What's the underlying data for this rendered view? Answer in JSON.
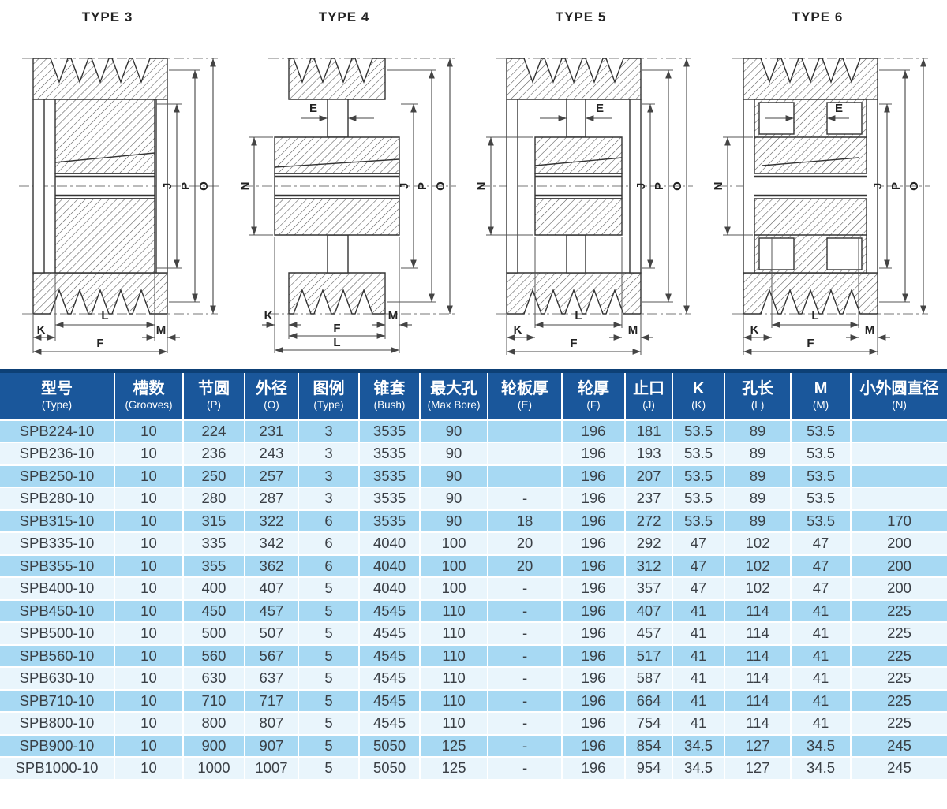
{
  "colors": {
    "header_bg": "#1a579b",
    "header_top": "#0d4076",
    "row_odd": "#a7d9f3",
    "row_even": "#e9f5fc",
    "text_dark": "#3a3f45",
    "line": "#333333"
  },
  "diagrams": [
    {
      "title": "TYPE 3",
      "labels": {
        "J": "J",
        "P": "P",
        "O": "O",
        "K": "K",
        "L": "L",
        "M": "M",
        "F": "F"
      }
    },
    {
      "title": "TYPE 4",
      "labels": {
        "E": "E",
        "N": "N",
        "J": "J",
        "P": "P",
        "O": "O",
        "K": "K",
        "L": "L",
        "M": "M",
        "F": "F"
      }
    },
    {
      "title": "TYPE 5",
      "labels": {
        "E": "E",
        "N": "N",
        "J": "J",
        "P": "P",
        "O": "O",
        "K": "K",
        "L": "L",
        "M": "M",
        "F": "F"
      }
    },
    {
      "title": "TYPE 6",
      "labels": {
        "E": "E",
        "N": "N",
        "J": "J",
        "P": "P",
        "O": "O",
        "K": "K",
        "L": "L",
        "M": "M",
        "F": "F"
      }
    }
  ],
  "table": {
    "columns": [
      {
        "zh": "型号",
        "en": "(Type)"
      },
      {
        "zh": "槽数",
        "en": "(Grooves)"
      },
      {
        "zh": "节圆",
        "en": "(P)"
      },
      {
        "zh": "外径",
        "en": "(O)"
      },
      {
        "zh": "图例",
        "en": "(Type)"
      },
      {
        "zh": "锥套",
        "en": "(Bush)"
      },
      {
        "zh": "最大孔",
        "en": "(Max Bore)"
      },
      {
        "zh": "轮板厚",
        "en": "(E)"
      },
      {
        "zh": "轮厚",
        "en": "(F)"
      },
      {
        "zh": "止口",
        "en": "(J)"
      },
      {
        "zh": "K",
        "en": "(K)"
      },
      {
        "zh": "孔长",
        "en": "(L)"
      },
      {
        "zh": "M",
        "en": "(M)"
      },
      {
        "zh": "小外圆直径",
        "en": "(N)"
      }
    ],
    "rows": [
      [
        "SPB224-10",
        "10",
        "224",
        "231",
        "3",
        "3535",
        "90",
        "",
        "196",
        "181",
        "53.5",
        "89",
        "53.5",
        ""
      ],
      [
        "SPB236-10",
        "10",
        "236",
        "243",
        "3",
        "3535",
        "90",
        "",
        "196",
        "193",
        "53.5",
        "89",
        "53.5",
        ""
      ],
      [
        "SPB250-10",
        "10",
        "250",
        "257",
        "3",
        "3535",
        "90",
        "",
        "196",
        "207",
        "53.5",
        "89",
        "53.5",
        ""
      ],
      [
        "SPB280-10",
        "10",
        "280",
        "287",
        "3",
        "3535",
        "90",
        "-",
        "196",
        "237",
        "53.5",
        "89",
        "53.5",
        ""
      ],
      [
        "SPB315-10",
        "10",
        "315",
        "322",
        "6",
        "3535",
        "90",
        "18",
        "196",
        "272",
        "53.5",
        "89",
        "53.5",
        "170"
      ],
      [
        "SPB335-10",
        "10",
        "335",
        "342",
        "6",
        "4040",
        "100",
        "20",
        "196",
        "292",
        "47",
        "102",
        "47",
        "200"
      ],
      [
        "SPB355-10",
        "10",
        "355",
        "362",
        "6",
        "4040",
        "100",
        "20",
        "196",
        "312",
        "47",
        "102",
        "47",
        "200"
      ],
      [
        "SPB400-10",
        "10",
        "400",
        "407",
        "5",
        "4040",
        "100",
        "-",
        "196",
        "357",
        "47",
        "102",
        "47",
        "200"
      ],
      [
        "SPB450-10",
        "10",
        "450",
        "457",
        "5",
        "4545",
        "110",
        "-",
        "196",
        "407",
        "41",
        "114",
        "41",
        "225"
      ],
      [
        "SPB500-10",
        "10",
        "500",
        "507",
        "5",
        "4545",
        "110",
        "-",
        "196",
        "457",
        "41",
        "114",
        "41",
        "225"
      ],
      [
        "SPB560-10",
        "10",
        "560",
        "567",
        "5",
        "4545",
        "110",
        "-",
        "196",
        "517",
        "41",
        "114",
        "41",
        "225"
      ],
      [
        "SPB630-10",
        "10",
        "630",
        "637",
        "5",
        "4545",
        "110",
        "-",
        "196",
        "587",
        "41",
        "114",
        "41",
        "225"
      ],
      [
        "SPB710-10",
        "10",
        "710",
        "717",
        "5",
        "4545",
        "110",
        "-",
        "196",
        "664",
        "41",
        "114",
        "41",
        "225"
      ],
      [
        "SPB800-10",
        "10",
        "800",
        "807",
        "5",
        "4545",
        "110",
        "-",
        "196",
        "754",
        "41",
        "114",
        "41",
        "225"
      ],
      [
        "SPB900-10",
        "10",
        "900",
        "907",
        "5",
        "5050",
        "125",
        "-",
        "196",
        "854",
        "34.5",
        "127",
        "34.5",
        "245"
      ],
      [
        "SPB1000-10",
        "10",
        "1000",
        "1007",
        "5",
        "5050",
        "125",
        "-",
        "196",
        "954",
        "34.5",
        "127",
        "34.5",
        "245"
      ]
    ]
  }
}
